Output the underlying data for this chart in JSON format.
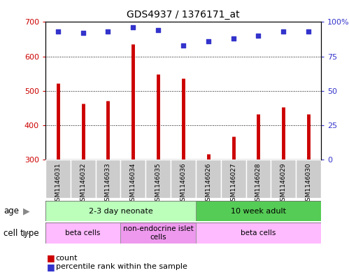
{
  "title": "GDS4937 / 1376171_at",
  "samples": [
    "GSM1146031",
    "GSM1146032",
    "GSM1146033",
    "GSM1146034",
    "GSM1146035",
    "GSM1146036",
    "GSM1146026",
    "GSM1146027",
    "GSM1146028",
    "GSM1146029",
    "GSM1146030"
  ],
  "counts": [
    522,
    463,
    470,
    635,
    549,
    537,
    316,
    368,
    432,
    453,
    432
  ],
  "percentiles": [
    93,
    92,
    93,
    96,
    94,
    83,
    86,
    88,
    90,
    93,
    93
  ],
  "ymin": 300,
  "ymax": 700,
  "yticks": [
    300,
    400,
    500,
    600,
    700
  ],
  "y2min": 0,
  "y2max": 100,
  "y2ticks": [
    0,
    25,
    50,
    75,
    100
  ],
  "bar_color": "#cc0000",
  "dot_color": "#3333cc",
  "age_groups": [
    {
      "label": "2-3 day neonate",
      "start": 0,
      "end": 6,
      "color": "#bbffbb"
    },
    {
      "label": "10 week adult",
      "start": 6,
      "end": 11,
      "color": "#55cc55"
    }
  ],
  "cell_type_groups": [
    {
      "label": "beta cells",
      "start": 0,
      "end": 3,
      "color": "#ffbbff"
    },
    {
      "label": "non-endocrine islet\ncells",
      "start": 3,
      "end": 6,
      "color": "#ee99ee"
    },
    {
      "label": "beta cells",
      "start": 6,
      "end": 11,
      "color": "#ffbbff"
    }
  ],
  "legend_count_label": "count",
  "legend_pct_label": "percentile rank within the sample",
  "sample_box_color": "#cccccc",
  "sample_box_edge": "#aaaaaa"
}
